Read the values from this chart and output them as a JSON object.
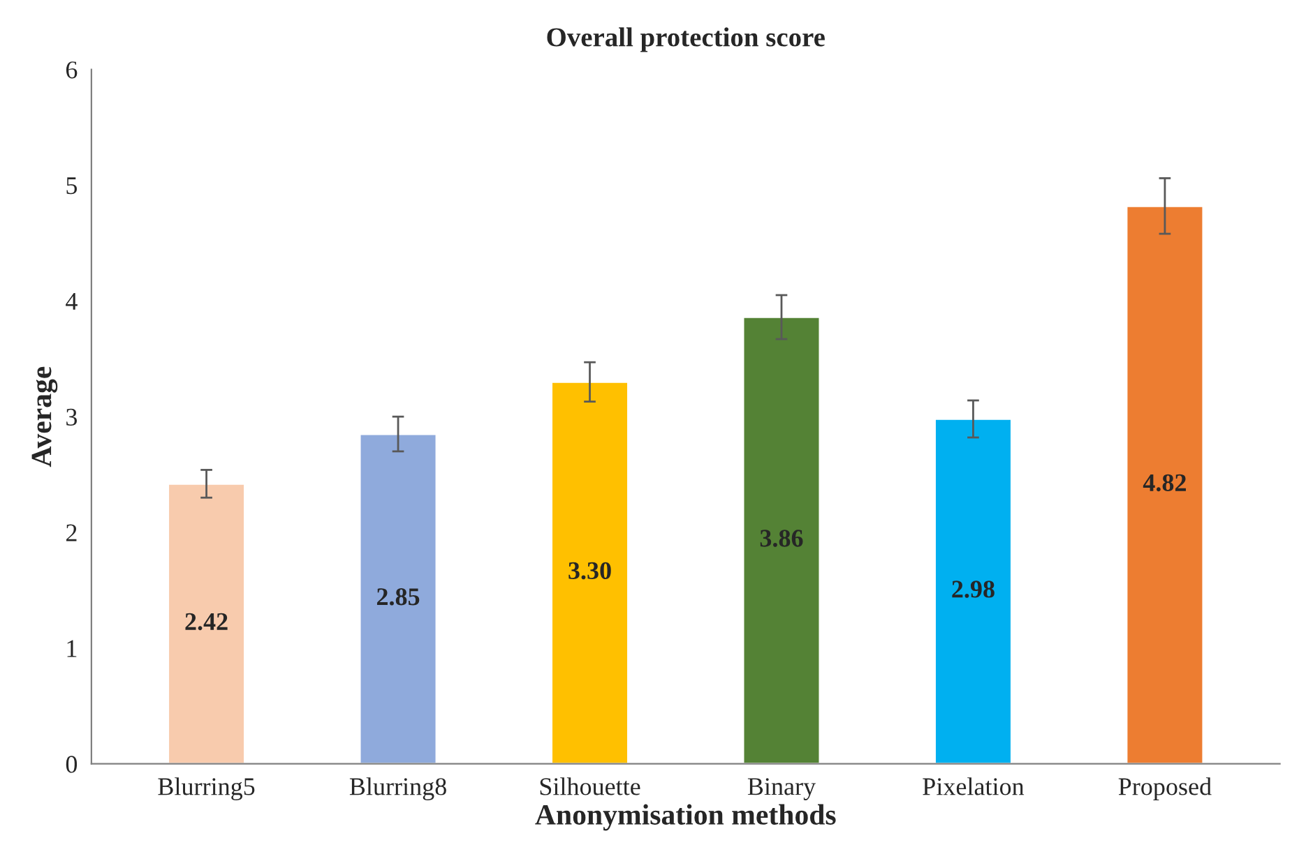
{
  "chart_data": {
    "type": "bar",
    "title": "Overall protection score",
    "xlabel": "Anonymisation methods",
    "ylabel": "Average",
    "categories": [
      "Blurring5",
      "Blurring8",
      "Silhouette",
      "Binary",
      "Pixelation",
      "Proposed"
    ],
    "values": [
      2.42,
      2.85,
      3.3,
      3.86,
      2.98,
      4.82
    ],
    "value_labels": [
      "2.42",
      "2.85",
      "3.30",
      "3.86",
      "2.98",
      "4.82"
    ],
    "errors": [
      0.12,
      0.15,
      0.17,
      0.19,
      0.16,
      0.24
    ],
    "colors": [
      "#f8cbad",
      "#8faadc",
      "#ffc000",
      "#548235",
      "#00b0f0",
      "#ed7d31"
    ],
    "ylim": [
      0,
      6
    ],
    "yticks": [
      0,
      1,
      2,
      3,
      4,
      5,
      6
    ],
    "grid": false,
    "legend": false
  }
}
